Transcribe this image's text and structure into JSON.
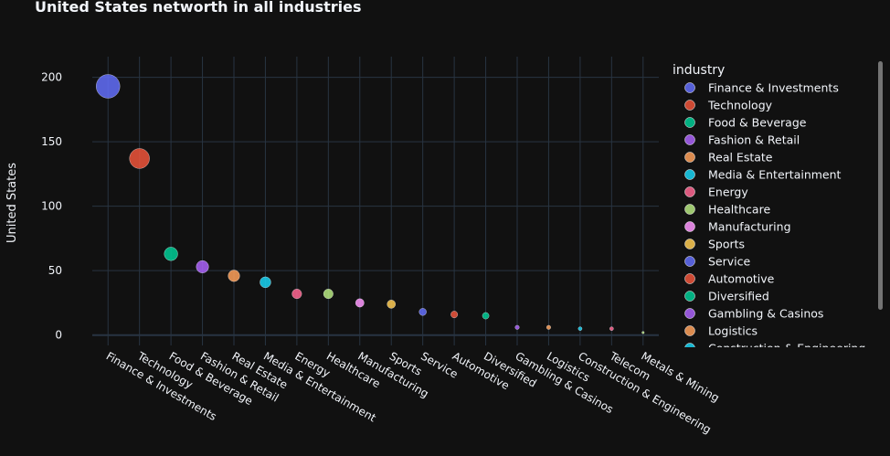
{
  "chart_data": {
    "type": "scatter",
    "title": "United States networth in all industries",
    "xlabel": "",
    "ylabel": "United States",
    "legend_title": "industry",
    "legend_placement": "right",
    "ylim": [
      -8,
      216
    ],
    "yticks": [
      0,
      50,
      100,
      150,
      200
    ],
    "grid": true,
    "categories": [
      "Finance & Investments",
      "Technology",
      "Food & Beverage",
      "Fashion & Retail",
      "Real Estate",
      "Media & Entertainment",
      "Energy",
      "Healthcare",
      "Manufacturing",
      "Sports",
      "Service",
      "Automotive",
      "Diversified",
      "Gambling & Casinos",
      "Logistics",
      "Construction & Engineering",
      "Telecom",
      "Metals & Mining"
    ],
    "values": [
      193,
      137,
      63,
      53,
      46,
      41,
      32,
      32,
      25,
      24,
      18,
      16,
      15,
      6,
      6,
      5,
      5,
      2
    ],
    "colors": [
      "#636efa",
      "#EF553B",
      "#00cc96",
      "#ab63fa",
      "#FFA15A",
      "#19d3f3",
      "#FF6692",
      "#B6E880",
      "#FF97FF",
      "#FECB52",
      "#636efa",
      "#EF553B",
      "#00cc96",
      "#ab63fa",
      "#FFA15A",
      "#19d3f3",
      "#FF6692",
      "#B6E880"
    ]
  },
  "colors": {
    "background": "#111111",
    "grid": "#283442",
    "text": "#f2f5fa"
  }
}
